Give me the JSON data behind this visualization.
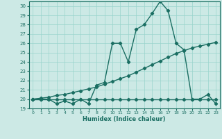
{
  "title": "",
  "xlabel": "Humidex (Indice chaleur)",
  "xlim": [
    -0.5,
    23.5
  ],
  "ylim": [
    19,
    30.5
  ],
  "yticks": [
    19,
    20,
    21,
    22,
    23,
    24,
    25,
    26,
    27,
    28,
    29,
    30
  ],
  "xticks": [
    0,
    1,
    2,
    3,
    4,
    5,
    6,
    7,
    8,
    9,
    10,
    11,
    12,
    13,
    14,
    15,
    16,
    17,
    18,
    19,
    20,
    21,
    22,
    23
  ],
  "bg_color": "#cce9e5",
  "grid_color": "#99d4cc",
  "line_color": "#1a6e62",
  "line1_x": [
    0,
    1,
    2,
    3,
    4,
    5,
    6,
    7,
    8,
    9,
    10,
    11,
    12,
    13,
    14,
    15,
    16,
    17,
    18,
    19,
    20,
    21,
    22,
    23
  ],
  "line1_y": [
    20,
    20,
    20,
    20,
    20,
    20,
    20,
    20,
    20,
    20,
    20,
    20,
    20,
    20,
    20,
    20,
    20,
    20,
    20,
    20,
    20,
    20,
    20,
    20
  ],
  "line2_x": [
    0,
    1,
    2,
    3,
    4,
    5,
    6,
    7,
    8,
    9,
    10,
    11,
    12,
    13,
    14,
    15,
    16,
    17,
    18,
    19,
    20,
    21,
    22,
    23
  ],
  "line2_y": [
    20.0,
    20.1,
    20.2,
    20.4,
    20.5,
    20.7,
    20.9,
    21.1,
    21.3,
    21.6,
    21.9,
    22.2,
    22.5,
    22.9,
    23.3,
    23.7,
    24.1,
    24.5,
    24.9,
    25.2,
    25.5,
    25.7,
    25.9,
    26.1
  ],
  "line3_x": [
    0,
    1,
    2,
    3,
    4,
    5,
    6,
    7,
    8,
    9,
    10,
    11,
    12,
    13,
    14,
    15,
    16,
    17,
    18,
    19,
    20,
    21,
    22,
    23
  ],
  "line3_y": [
    20,
    20,
    20,
    19.5,
    19.8,
    19.5,
    20,
    19.5,
    21.5,
    21.8,
    26,
    26,
    24,
    27.5,
    28,
    29.2,
    30.5,
    29.5,
    26.0,
    25.3,
    20,
    20,
    20.5,
    19.5
  ],
  "marker": "D",
  "markersize": 2.2,
  "linewidth": 1.0
}
